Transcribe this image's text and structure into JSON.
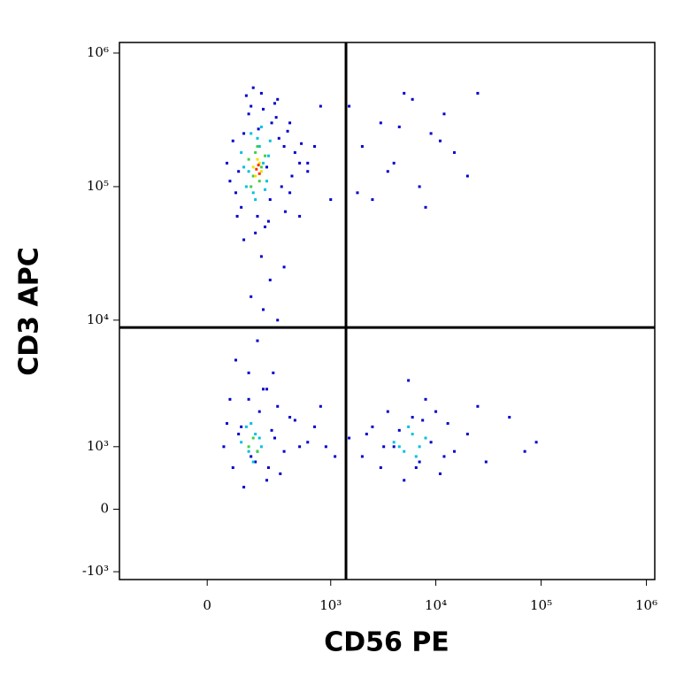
{
  "chart_data": {
    "type": "scatter",
    "x_label": "CD56 PE",
    "y_label": "CD3 APC",
    "xscale": "biexponential",
    "yscale": "biexponential",
    "xlim": [
      -450,
      1200000
    ],
    "ylim": [
      -1180,
      1200000
    ],
    "xticks": [
      0,
      {
        "value": 1000,
        "label": "10³"
      },
      {
        "value": 10000,
        "label": "10⁴"
      },
      {
        "value": 100000,
        "label": "10⁵"
      },
      {
        "value": 1000000,
        "label": "10⁶"
      }
    ],
    "yticks": [
      {
        "value": -1000,
        "label": "-10³"
      },
      0,
      {
        "value": 1000,
        "label": "10³"
      },
      {
        "value": 10000,
        "label": "10⁴"
      },
      {
        "value": 100000,
        "label": "10⁵"
      },
      {
        "value": 1000000,
        "label": "10⁶"
      }
    ],
    "gates": {
      "x": 1400,
      "y": 8800
    },
    "series": [
      {
        "color": "#0000cc",
        "x": [
          60,
          90,
          120,
          150,
          180,
          220,
          260,
          300,
          350,
          420,
          500,
          80,
          110,
          140,
          200,
          240,
          280,
          330,
          380,
          450,
          100,
          130,
          170,
          210,
          250,
          310,
          360,
          70,
          160,
          230,
          290,
          400,
          520,
          600,
          95,
          185
        ],
        "y": [
          150000,
          90000,
          250000,
          400000,
          60000,
          50000,
          300000,
          450000,
          200000,
          120000,
          150000,
          220000,
          70000,
          350000,
          500000,
          55000,
          420000,
          100000,
          260000,
          180000,
          130000,
          480000,
          45000,
          380000,
          80000,
          230000,
          65000,
          110000,
          550000,
          140000,
          330000,
          90000,
          210000,
          130000,
          60000,
          270000
        ]
      },
      {
        "color": "#0000cc",
        "x": [
          120,
          200,
          250,
          150,
          300,
          180,
          90,
          270,
          230,
          140,
          350,
          210
        ],
        "y": [
          40000,
          30000,
          20000,
          15000,
          10000,
          7000,
          5000,
          4000,
          3000,
          2500,
          25000,
          12000
        ]
      },
      {
        "color": "#0000cc",
        "x": [
          50,
          80,
          110,
          150,
          190,
          230,
          280,
          350,
          450,
          600,
          70,
          120,
          170,
          210,
          260,
          320,
          400,
          100,
          140,
          180,
          240,
          60,
          300,
          500
        ],
        "y": [
          1000,
          600,
          1500,
          800,
          2000,
          400,
          1200,
          900,
          1700,
          1100,
          2500,
          300,
          700,
          3000,
          1400,
          500,
          1800,
          1300,
          4000,
          900,
          600,
          1600,
          2200,
          1000
        ]
      },
      {
        "color": "#0000cc",
        "x": [
          1500,
          2000,
          2500,
          3000,
          3500,
          4000,
          5000,
          6000,
          7000,
          8000,
          9000,
          11000,
          13000,
          15000,
          20000,
          25000,
          30000,
          50000,
          70000,
          90000,
          4500,
          5500,
          6500,
          7500,
          10000,
          12000,
          3200,
          2200
        ],
        "y": [
          1200,
          800,
          1500,
          600,
          2000,
          1000,
          400,
          1800,
          700,
          2500,
          1100,
          500,
          1600,
          900,
          1300,
          2200,
          700,
          1800,
          900,
          1100,
          1400,
          3500,
          600,
          1700,
          2000,
          800,
          1000,
          1300
        ]
      },
      {
        "color": "#0000cc",
        "x": [
          1500,
          2000,
          3000,
          4000,
          5000,
          7000,
          9000,
          12000,
          15000,
          20000,
          2500,
          6000,
          8000,
          11000,
          3500,
          25000,
          1800,
          4500
        ],
        "y": [
          400000,
          200000,
          300000,
          150000,
          500000,
          100000,
          250000,
          350000,
          180000,
          120000,
          80000,
          450000,
          70000,
          220000,
          130000,
          500000,
          90000,
          280000
        ]
      },
      {
        "color": "#0000cc",
        "x": [
          400,
          600,
          800,
          1000,
          700,
          500,
          700,
          900,
          1100,
          800
        ],
        "y": [
          300000,
          150000,
          400000,
          80000,
          200000,
          60000,
          1500,
          1000,
          800,
          2200
        ]
      },
      {
        "color": "#00c0e0",
        "x": [
          110,
          130,
          150,
          170,
          190,
          210,
          230,
          250,
          120,
          160,
          200,
          240,
          140,
          180,
          220
        ],
        "y": [
          180000,
          100000,
          250000,
          80000,
          200000,
          150000,
          110000,
          220000,
          140000,
          90000,
          280000,
          170000,
          130000,
          230000,
          95000
        ]
      },
      {
        "color": "#00c0e0",
        "x": [
          110,
          140,
          170,
          200,
          130,
          160,
          190,
          150,
          4000,
          5000,
          6000,
          7000,
          8000,
          5500,
          6500,
          4500
        ],
        "y": [
          1100,
          900,
          1300,
          1000,
          1500,
          700,
          1200,
          1600,
          1100,
          900,
          1300,
          1000,
          1200,
          1500,
          800,
          1000
        ]
      },
      {
        "color": "#40d040",
        "x": [
          140,
          160,
          180,
          200,
          220,
          150,
          190,
          170,
          140,
          160,
          180
        ],
        "y": [
          160000,
          120000,
          200000,
          140000,
          170000,
          100000,
          110000,
          180000,
          1000,
          1200,
          900
        ]
      },
      {
        "color": "#f0e000",
        "x": [
          160,
          180,
          200,
          170,
          190
        ],
        "y": [
          140000,
          160000,
          130000,
          120000,
          150000
        ]
      },
      {
        "color": "#ff3000",
        "x": [
          175,
          190,
          185
        ],
        "y": [
          135000,
          125000,
          145000
        ]
      }
    ]
  }
}
